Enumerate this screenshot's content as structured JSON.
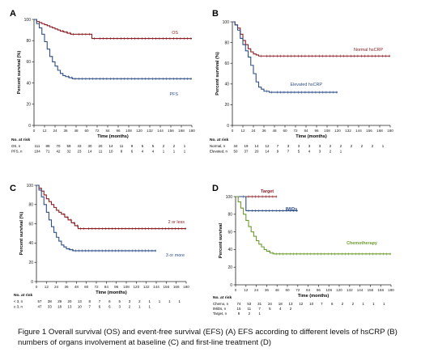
{
  "caption": "Figure 1 Overall survival (OS) and event-free survival (EFS) (A) EFS according to different levels of hsCRP (B) numbers of organs involvement at baseline (C) and first-line treatment (D)",
  "chart_data": [
    {
      "panel": "A",
      "type": "line",
      "title": "",
      "xlabel": "Time (months)",
      "ylabel": "Percent survival (%)",
      "xlim": [
        0,
        180
      ],
      "ylim": [
        0,
        100
      ],
      "xticks": [
        0,
        12,
        24,
        36,
        48,
        60,
        72,
        84,
        96,
        108,
        120,
        132,
        144,
        156,
        168,
        180
      ],
      "yticks": [
        0,
        20,
        40,
        60,
        80,
        100
      ],
      "series": [
        {
          "name": "OS",
          "color": "#8b1c23",
          "x": [
            0,
            3,
            6,
            9,
            12,
            15,
            18,
            21,
            24,
            27,
            30,
            34,
            38,
            42,
            48,
            60,
            66,
            72,
            84,
            96,
            108,
            120,
            132,
            144,
            156,
            168,
            180
          ],
          "y": [
            100,
            98,
            97,
            96,
            95,
            94,
            93,
            92,
            91,
            90,
            89,
            88,
            87,
            86,
            86,
            86,
            82,
            82,
            82,
            82,
            82,
            82,
            82,
            82,
            82,
            82,
            82
          ]
        },
        {
          "name": "PFS",
          "color": "#2e4e86",
          "x": [
            0,
            3,
            6,
            9,
            12,
            15,
            18,
            21,
            24,
            27,
            30,
            33,
            36,
            40,
            44,
            48,
            60,
            72,
            84,
            96,
            108,
            120,
            132,
            144,
            156,
            168,
            180
          ],
          "y": [
            100,
            96,
            92,
            86,
            79,
            72,
            65,
            60,
            56,
            52,
            49,
            47,
            46,
            45,
            44,
            44,
            44,
            44,
            44,
            44,
            44,
            44,
            44,
            44,
            44,
            44,
            44
          ]
        }
      ],
      "risk_table": {
        "header": "No. at risk",
        "rows": [
          {
            "label": "OS, n",
            "values": [
              "111",
              "89",
              "70",
              "59",
              "43",
              "30",
              "20",
              "14",
              "11",
              "9",
              "5",
              "5",
              "2",
              "2",
              "1"
            ]
          },
          {
            "label": "PFS, n",
            "values": [
              "104",
              "71",
              "42",
              "32",
              "23",
              "14",
              "11",
              "10",
              "8",
              "6",
              "4",
              "4",
              "1",
              "1",
              "1"
            ]
          }
        ]
      }
    },
    {
      "panel": "B",
      "type": "line",
      "title": "",
      "xlabel": "Time (months)",
      "ylabel": "Percent survival (%)",
      "xlim": [
        0,
        180
      ],
      "ylim": [
        0,
        100
      ],
      "xticks": [
        0,
        12,
        24,
        36,
        48,
        60,
        72,
        84,
        96,
        108,
        120,
        132,
        144,
        156,
        168,
        180
      ],
      "yticks": [
        0,
        20,
        40,
        60,
        80,
        100
      ],
      "series": [
        {
          "name": "Normal hsCRP",
          "color": "#8b1c23",
          "x": [
            0,
            3,
            6,
            9,
            12,
            15,
            18,
            21,
            24,
            27,
            30,
            36,
            48,
            60,
            72,
            84,
            96,
            108,
            120,
            132,
            144,
            156,
            168,
            180
          ],
          "y": [
            100,
            97,
            94,
            88,
            82,
            78,
            74,
            71,
            69,
            68,
            67,
            67,
            67,
            67,
            67,
            67,
            67,
            67,
            67,
            67,
            67,
            67,
            67,
            67
          ]
        },
        {
          "name": "Elevated hsCRP",
          "color": "#2e4e86",
          "x": [
            0,
            3,
            6,
            9,
            12,
            15,
            18,
            21,
            24,
            27,
            30,
            33,
            36,
            42,
            48,
            60,
            72,
            84,
            96,
            108,
            120
          ],
          "y": [
            100,
            97,
            92,
            84,
            78,
            72,
            66,
            58,
            50,
            42,
            37,
            35,
            33,
            32,
            32,
            32,
            32,
            32,
            32,
            32,
            32
          ]
        }
      ],
      "risk_table": {
        "header": "No. at risk",
        "rows": [
          {
            "label": "Normal, n",
            "values": [
              "34",
              "19",
              "14",
              "12",
              "7",
              "3",
              "3",
              "3",
              "3",
              "2",
              "2",
              "2",
              "2",
              "2",
              "1"
            ]
          },
          {
            "label": "Elevated, n",
            "values": [
              "50",
              "37",
              "20",
              "14",
              "9",
              "7",
              "5",
              "4",
              "3",
              "2",
              "1"
            ]
          }
        ]
      }
    },
    {
      "panel": "C",
      "type": "line",
      "title": "",
      "xlabel": "Time (months)",
      "ylabel": "Percent survival (%)",
      "xlim": [
        0,
        180
      ],
      "ylim": [
        0,
        100
      ],
      "xticks": [
        0,
        12,
        24,
        36,
        48,
        60,
        72,
        84,
        96,
        108,
        120,
        132,
        144,
        156,
        168,
        180
      ],
      "yticks": [
        0,
        20,
        40,
        60,
        80,
        100
      ],
      "series": [
        {
          "name": "2 or less",
          "color": "#8b1c23",
          "x": [
            0,
            3,
            6,
            9,
            12,
            15,
            18,
            21,
            24,
            27,
            30,
            34,
            38,
            42,
            46,
            50,
            60,
            72,
            84,
            96,
            108,
            120,
            132,
            144,
            156,
            168,
            180
          ],
          "y": [
            100,
            97,
            94,
            90,
            86,
            83,
            80,
            77,
            74,
            72,
            70,
            67,
            64,
            61,
            58,
            55,
            55,
            55,
            55,
            55,
            55,
            55,
            55,
            55,
            55,
            55,
            55
          ]
        },
        {
          "name": "3 or more",
          "color": "#2e4e86",
          "x": [
            0,
            3,
            6,
            9,
            12,
            15,
            18,
            21,
            24,
            27,
            30,
            33,
            36,
            40,
            44,
            48,
            60,
            72,
            84,
            96,
            108,
            120,
            132,
            144
          ],
          "y": [
            100,
            95,
            88,
            80,
            72,
            64,
            57,
            51,
            46,
            42,
            38,
            36,
            34,
            33,
            32,
            32,
            32,
            32,
            32,
            32,
            32,
            32,
            32,
            32
          ]
        }
      ],
      "risk_table": {
        "header": "No. at risk",
        "rows": [
          {
            "label": "< 3, n",
            "values": [
              "57",
              "38",
              "29",
              "20",
              "13",
              "8",
              "7",
              "6",
              "5",
              "3",
              "2",
              "1",
              "1",
              "1",
              "1"
            ]
          },
          {
            "label": "≥ 3, n",
            "values": [
              "47",
              "33",
              "18",
              "13",
              "10",
              "7",
              "6",
              "6",
              "3",
              "2",
              "1",
              "1"
            ]
          }
        ]
      }
    },
    {
      "panel": "D",
      "type": "line",
      "title": "",
      "xlabel": "Time (months)",
      "ylabel": "Percent survival",
      "xlim": [
        0,
        180
      ],
      "ylim": [
        0,
        100
      ],
      "xticks": [
        0,
        12,
        24,
        36,
        48,
        60,
        72,
        84,
        96,
        108,
        120,
        132,
        144,
        156,
        168,
        180
      ],
      "yticks": [
        0,
        20,
        40,
        60,
        80,
        100
      ],
      "series": [
        {
          "name": "Target",
          "color": "#8b1c23",
          "x": [
            0,
            12,
            24,
            36,
            48
          ],
          "y": [
            100,
            100,
            100,
            100,
            100
          ]
        },
        {
          "name": "IMiDs",
          "color": "#2e4e86",
          "x": [
            0,
            6,
            10,
            12,
            24,
            36,
            48,
            60,
            72
          ],
          "y": [
            100,
            100,
            100,
            84,
            84,
            84,
            84,
            84,
            84
          ]
        },
        {
          "name": "Chemotherapy",
          "color": "#6e9b2e",
          "x": [
            0,
            3,
            6,
            9,
            12,
            15,
            18,
            21,
            24,
            27,
            30,
            33,
            36,
            40,
            44,
            48,
            60,
            72,
            84,
            96,
            108,
            120,
            132,
            144,
            156,
            168,
            180
          ],
          "y": [
            100,
            94,
            87,
            80,
            73,
            66,
            60,
            55,
            50,
            46,
            43,
            40,
            38,
            36,
            35,
            35,
            35,
            35,
            35,
            35,
            35,
            35,
            35,
            35,
            35,
            35,
            35
          ]
        }
      ],
      "risk_table": {
        "header": "No. at risk",
        "rows": [
          {
            "label": "Chemo, n",
            "values": [
              "74",
              "53",
              "31",
              "24",
              "18",
              "13",
              "12",
              "10",
              "7",
              "6",
              "2",
              "2",
              "1",
              "1",
              "1"
            ]
          },
          {
            "label": "IMiDs, n",
            "values": [
              "15",
              "11",
              "7",
              "5",
              "4",
              "2"
            ]
          },
          {
            "label": "Target, n",
            "values": [
              "8",
              "2",
              "1"
            ]
          }
        ]
      }
    }
  ]
}
